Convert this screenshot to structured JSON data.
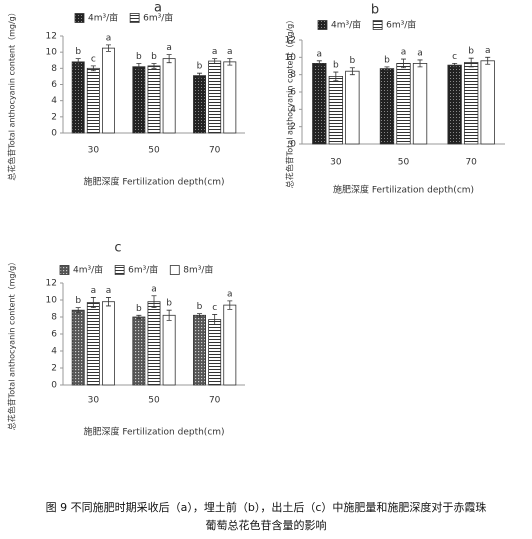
{
  "chart_data": [
    {
      "type": "bar",
      "title": "a",
      "categories": [
        "30",
        "50",
        "70"
      ],
      "x_label": "施肥深度 Fertilization depth(cm)",
      "y_label": "总花色苷Total anthocyanin content（mg/g）",
      "ylim": [
        0,
        12
      ],
      "yticks": [
        0,
        2,
        4,
        6,
        8,
        10,
        12
      ],
      "series": [
        {
          "name": "4m³/亩",
          "color": "#222222",
          "pattern": "dots",
          "values": [
            8.8,
            8.2,
            7.1
          ],
          "errors": [
            0.4,
            0.4,
            0.3
          ],
          "letters": [
            "b",
            "b",
            "b"
          ]
        },
        {
          "name": "6m³/亩",
          "color": "#ffffff",
          "pattern": "stripes",
          "values": [
            8.0,
            8.3,
            8.9
          ],
          "errors": [
            0.3,
            0.3,
            0.3
          ],
          "letters": [
            "c",
            "b",
            "a"
          ]
        },
        {
          "color": "#ffffff",
          "pattern": "none",
          "values": [
            10.5,
            9.2,
            8.8
          ],
          "errors": [
            0.4,
            0.5,
            0.4
          ],
          "letters": [
            "a",
            "a",
            "a"
          ]
        }
      ]
    },
    {
      "type": "bar",
      "title": "b",
      "categories": [
        "30",
        "50",
        "70"
      ],
      "x_label": "施肥深度 Fertilization depth(cm)",
      "y_label": "总花色苷Total anthocyanin content（mg/g）",
      "ylim": [
        0,
        12
      ],
      "yticks": [
        0,
        2,
        4,
        6,
        8,
        10,
        12
      ],
      "series": [
        {
          "name": "4m³/亩",
          "color": "#222222",
          "pattern": "dots",
          "values": [
            9.3,
            8.7,
            9.1
          ],
          "errors": [
            0.3,
            0.2,
            0.2
          ],
          "letters": [
            "a",
            "b",
            "c"
          ]
        },
        {
          "name": "6m³/亩",
          "color": "#ffffff",
          "pattern": "stripes",
          "values": [
            7.8,
            9.3,
            9.4
          ],
          "errors": [
            0.5,
            0.5,
            0.5
          ],
          "letters": [
            "b",
            "a",
            "b"
          ]
        },
        {
          "color": "#ffffff",
          "pattern": "none",
          "values": [
            8.4,
            9.3,
            9.6
          ],
          "errors": [
            0.4,
            0.4,
            0.4
          ],
          "letters": [
            "b",
            "a",
            "a"
          ]
        }
      ]
    },
    {
      "type": "bar",
      "title": "c",
      "categories": [
        "30",
        "50",
        "70"
      ],
      "x_label": "施肥深度 Fertilization depth(cm)",
      "y_label": "总花色苷Total anthocyanin content（mg/g）",
      "ylim": [
        0,
        12
      ],
      "yticks": [
        0,
        2,
        4,
        6,
        8,
        10,
        12
      ],
      "series": [
        {
          "name": "4m³/亩",
          "color": "#666666",
          "pattern": "dots",
          "values": [
            8.8,
            8.0,
            8.2
          ],
          "errors": [
            0.3,
            0.2,
            0.2
          ],
          "letters": [
            "b",
            "b",
            "b"
          ]
        },
        {
          "name": "6m³/亩",
          "color": "#ffffff",
          "pattern": "stripes",
          "values": [
            9.7,
            9.8,
            7.7
          ],
          "errors": [
            0.6,
            0.7,
            0.6
          ],
          "letters": [
            "a",
            "a",
            "c"
          ]
        },
        {
          "name": "8m³/亩",
          "color": "#ffffff",
          "pattern": "none",
          "values": [
            9.8,
            8.2,
            9.4
          ],
          "errors": [
            0.5,
            0.6,
            0.5
          ],
          "letters": [
            "a",
            "b",
            "a"
          ]
        }
      ]
    }
  ],
  "caption": [
    "图 9  不同施肥时期采收后（a），埋土前（b），出土后（c）中施肥量和施肥深度对于赤霞珠",
    "葡萄总花色苷含量的影响"
  ]
}
